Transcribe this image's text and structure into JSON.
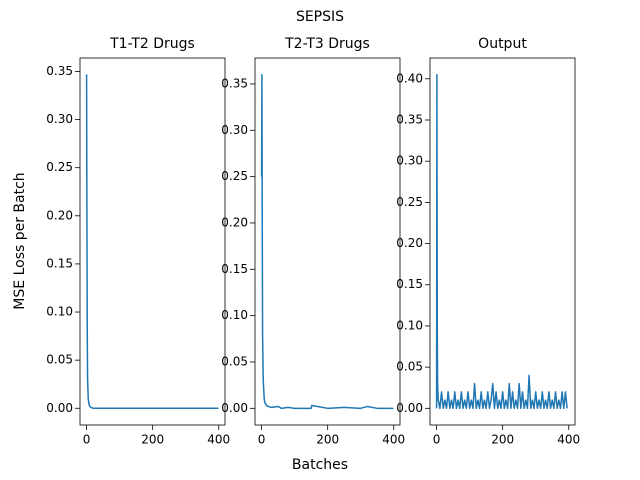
{
  "title": "SEPSIS",
  "x_label": "Batches",
  "y_label": "MSE Loss per Batch",
  "chart_data": [
    {
      "type": "line",
      "title": "T1-T2 Drugs",
      "color": "#1f77b4",
      "x": [
        0,
        1,
        2,
        3,
        5,
        8,
        12,
        20,
        30,
        50,
        100,
        200,
        300,
        399
      ],
      "values": [
        0.347,
        0.2,
        0.08,
        0.03,
        0.01,
        0.003,
        0.001,
        0.0,
        0.0,
        0.0,
        0.0,
        0.0,
        0.0,
        0.0
      ],
      "xlim": [
        -19.95,
        418.95
      ],
      "xticks": [
        0,
        200,
        400
      ],
      "ylim": [
        -0.0174,
        0.364
      ],
      "yticks": [
        {
          "value": 0,
          "label": "0.00"
        },
        {
          "value": 0.05,
          "label": "0.05"
        },
        {
          "value": 0.1,
          "label": "0.10"
        },
        {
          "value": 0.15,
          "label": "0.15"
        },
        {
          "value": 0.2,
          "label": "0.20"
        },
        {
          "value": 0.25,
          "label": "0.25"
        },
        {
          "value": 0.3,
          "label": "0.30"
        },
        {
          "value": 0.35,
          "label": "0.35"
        }
      ]
    },
    {
      "type": "line",
      "title": "T2-T3 Drugs",
      "color": "#1f77b4",
      "x": [
        0,
        1,
        2,
        3,
        5,
        8,
        10,
        15,
        20,
        30,
        50,
        60,
        80,
        100,
        150,
        152,
        200,
        250,
        300,
        320,
        350,
        399
      ],
      "values": [
        0.25,
        0.36,
        0.2,
        0.08,
        0.03,
        0.01,
        0.006,
        0.003,
        0.002,
        0.001,
        0.002,
        0.0,
        0.001,
        0.0,
        0.0,
        0.003,
        0.0,
        0.001,
        0.0,
        0.002,
        0.0,
        0.0
      ],
      "xlim": [
        -19.95,
        418.95
      ],
      "xticks": [
        0,
        200,
        400
      ],
      "ylim": [
        -0.018,
        0.378
      ],
      "yticks": [
        {
          "value": 0,
          "label": "0.00"
        },
        {
          "value": 0.05,
          "label": "0.05"
        },
        {
          "value": 0.1,
          "label": "0.10"
        },
        {
          "value": 0.15,
          "label": "0.15"
        },
        {
          "value": 0.2,
          "label": "0.20"
        },
        {
          "value": 0.25,
          "label": "0.25"
        },
        {
          "value": 0.3,
          "label": "0.30"
        },
        {
          "value": 0.35,
          "label": "0.35"
        }
      ]
    },
    {
      "type": "line",
      "title": "Output",
      "color": "#1f77b4",
      "x": [
        0,
        1,
        2,
        3,
        5,
        10,
        15,
        20,
        25,
        30,
        35,
        40,
        45,
        50,
        55,
        60,
        65,
        70,
        75,
        80,
        85,
        90,
        95,
        100,
        105,
        110,
        115,
        120,
        125,
        130,
        135,
        140,
        145,
        150,
        155,
        160,
        165,
        170,
        175,
        180,
        185,
        190,
        195,
        200,
        205,
        210,
        215,
        220,
        225,
        230,
        235,
        240,
        245,
        250,
        255,
        260,
        265,
        270,
        275,
        280,
        285,
        290,
        295,
        300,
        305,
        310,
        315,
        320,
        325,
        330,
        335,
        340,
        345,
        350,
        355,
        360,
        365,
        370,
        375,
        380,
        385,
        390,
        395
      ],
      "values": [
        0.0,
        0.405,
        0.1,
        0.03,
        0.01,
        0.0,
        0.02,
        0.0,
        0.01,
        0.0,
        0.02,
        0.0,
        0.01,
        0.0,
        0.02,
        0.0,
        0.01,
        0.0,
        0.02,
        0.0,
        0.01,
        0.0,
        0.02,
        0.0,
        0.01,
        0.0,
        0.03,
        0.0,
        0.01,
        0.0,
        0.02,
        0.0,
        0.01,
        0.0,
        0.02,
        0.0,
        0.01,
        0.03,
        0.0,
        0.02,
        0.0,
        0.01,
        0.0,
        0.02,
        0.0,
        0.01,
        0.0,
        0.03,
        0.0,
        0.02,
        0.0,
        0.01,
        0.0,
        0.03,
        0.0,
        0.02,
        0.0,
        0.01,
        0.0,
        0.04,
        0.0,
        0.01,
        0.0,
        0.02,
        0.0,
        0.01,
        0.0,
        0.02,
        0.0,
        0.01,
        0.0,
        0.02,
        0.0,
        0.01,
        0.0,
        0.02,
        0.0,
        0.01,
        0.0,
        0.02,
        0.0,
        0.02,
        0.0
      ],
      "xlim": [
        -19.95,
        418.95
      ],
      "xticks": [
        0,
        200,
        400
      ],
      "ylim": [
        -0.02025,
        0.42525
      ],
      "yticks": [
        {
          "value": 0,
          "label": "0.00"
        },
        {
          "value": 0.05,
          "label": "0.05"
        },
        {
          "value": 0.1,
          "label": "0.10"
        },
        {
          "value": 0.15,
          "label": "0.15"
        },
        {
          "value": 0.2,
          "label": "0.20"
        },
        {
          "value": 0.25,
          "label": "0.25"
        },
        {
          "value": 0.3,
          "label": "0.30"
        },
        {
          "value": 0.35,
          "label": "0.35"
        },
        {
          "value": 0.4,
          "label": "0.40"
        }
      ]
    }
  ]
}
